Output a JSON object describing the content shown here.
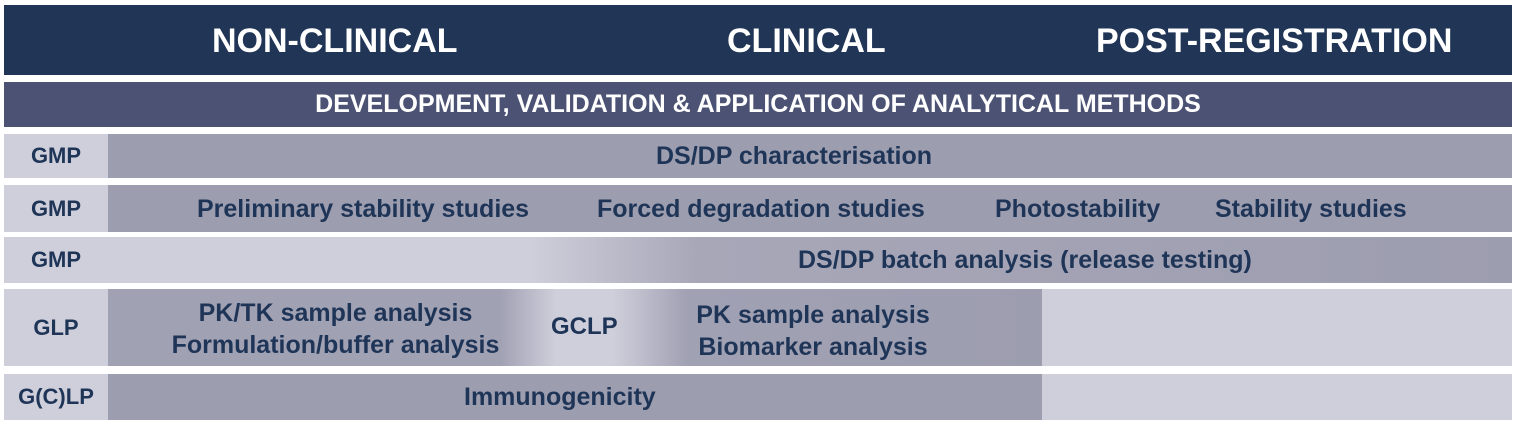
{
  "header": {
    "phases": [
      "NON-CLINICAL",
      "CLINICAL",
      "POST-REGISTRATION"
    ]
  },
  "methods_banner": "DEVELOPMENT, VALIDATION & APPLICATION OF ANALYTICAL METHODS",
  "rows": [
    {
      "label": "GMP",
      "items": [
        "DS/DP characterisation"
      ]
    },
    {
      "label": "GMP",
      "items": [
        "Preliminary stability studies",
        "Forced degradation studies",
        "Photostability",
        "Stability studies"
      ]
    },
    {
      "label": "GMP",
      "items": [
        "DS/DP batch analysis (release testing)"
      ]
    },
    {
      "label": "GLP",
      "glp_items": [
        "PK/TK sample analysis",
        "Formulation/buffer analysis"
      ],
      "mid_label": "GCLP",
      "gclp_items": [
        "PK sample analysis",
        "Biomarker analysis"
      ]
    },
    {
      "label": "G(C)LP",
      "items": [
        "Immunogenicity"
      ]
    }
  ],
  "colors": {
    "header_bg": "#213556",
    "banner_bg": "#4b5273",
    "label_bg": "#cfcfdb",
    "bar_bg": "#9d9db0",
    "text_dark": "#1f3557"
  }
}
